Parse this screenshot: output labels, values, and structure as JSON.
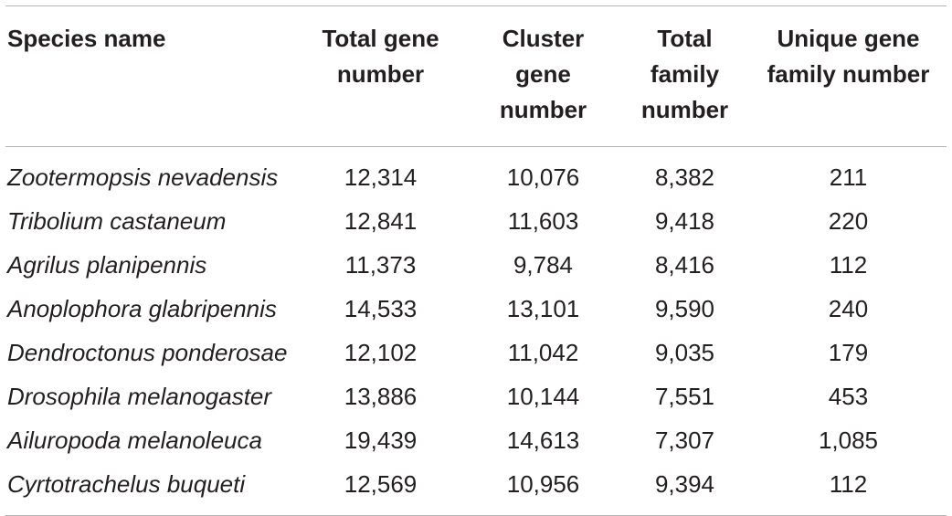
{
  "table": {
    "headers": [
      "Species name",
      "Total gene number",
      "Cluster gene number",
      "Total family number",
      "Unique gene family number"
    ],
    "rows": [
      [
        "Zootermopsis nevadensis",
        "12,314",
        "10,076",
        "8,382",
        "211"
      ],
      [
        "Tribolium castaneum",
        "12,841",
        "11,603",
        "9,418",
        "220"
      ],
      [
        "Agrilus planipennis",
        "11,373",
        "9,784",
        "8,416",
        "112"
      ],
      [
        "Anoplophora glabripennis",
        "14,533",
        "13,101",
        "9,590",
        "240"
      ],
      [
        "Dendroctonus ponderosae",
        "12,102",
        "11,042",
        "9,035",
        "179"
      ],
      [
        "Drosophila melanogaster",
        "13,886",
        "10,144",
        "7,551",
        "453"
      ],
      [
        "Ailuropoda melanoleuca",
        "19,439",
        "14,613",
        "7,307",
        "1,085"
      ],
      [
        "Cyrtotrachelus buqueti",
        "12,569",
        "10,956",
        "9,394",
        "112"
      ]
    ]
  }
}
